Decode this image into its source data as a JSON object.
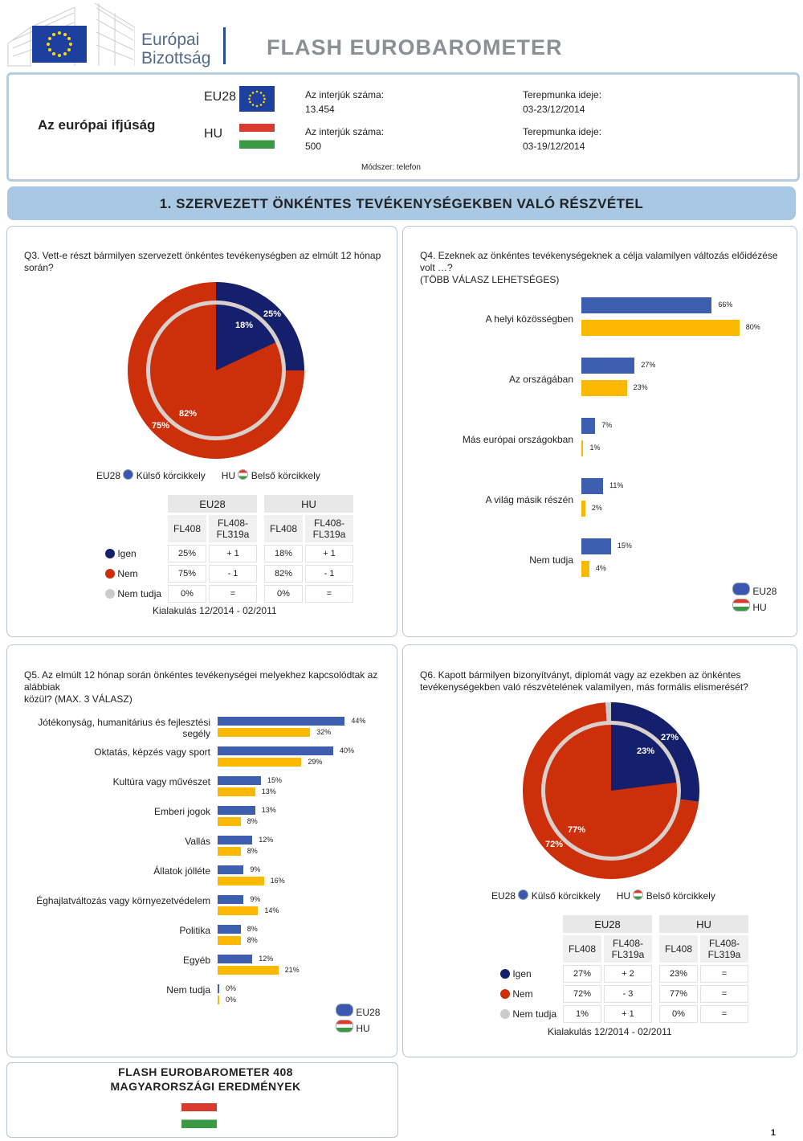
{
  "header": {
    "logo_line1": "Európai",
    "logo_line2": "Bizottság",
    "title": "FLASH EUROBAROMETER"
  },
  "info": {
    "subject": "Az európai ifjúság",
    "eu_code": "EU28",
    "hu_code": "HU",
    "interviews_label": "Az interjúk száma:",
    "eu_interviews": "13.454",
    "hu_interviews": "500",
    "fieldwork_label": "Terepmunka ideje:",
    "eu_fieldwork": "03-23/12/2014",
    "hu_fieldwork": "03-19/12/2014",
    "method": "Módszer: telefon"
  },
  "section_title": "1. SZERVEZETT ÖNKÉNTES TEVÉKENYSÉGEKBEN VALÓ RÉSZVÉTEL",
  "colors": {
    "eu_blue": "#14206b",
    "hu_red": "#cc2f0a",
    "grey": "#cccccc",
    "bar_blue": "#3e5fb0",
    "bar_yellow": "#fbb800"
  },
  "q3": {
    "question": "Q3. Vett-e részt bármilyen szervezett önkéntes tevékenységben az elmúlt 12 hónap során?",
    "legend_eu": "EU28",
    "legend_eu_text": "Külső körcikkely",
    "legend_hu": "HU",
    "legend_hu_text": "Belső körcikkely",
    "pie_labels": {
      "eu_yes": "25%",
      "hu_yes": "18%",
      "eu_no": "75%",
      "hu_no": "82%"
    },
    "table": {
      "group_eu": "EU28",
      "group_hu": "HU",
      "col1": "FL408",
      "col2_line1": "FL408-",
      "col2_line2": "FL319a",
      "rows": [
        {
          "label": "Igen",
          "eu": "25%",
          "eu_d": "+ 1",
          "hu": "18%",
          "hu_d": "+ 1"
        },
        {
          "label": "Nem",
          "eu": "75%",
          "eu_d": "- 1",
          "hu": "82%",
          "hu_d": "- 1"
        },
        {
          "label": "Nem tudja",
          "eu": "0%",
          "eu_d": "=",
          "hu": "0%",
          "hu_d": "="
        }
      ]
    },
    "trend_note": "Kialakulás 12/2014 - 02/2011"
  },
  "q4": {
    "question_line1": "Q4. Ezeknek az  önkéntes tevékenységeknek a  célja valamilyen változás előidézése volt …?",
    "question_line2": "(TÖBB VÁLASZ LEHETSÉGES)",
    "legend_eu": "EU28",
    "legend_hu": "HU"
  },
  "q5": {
    "question_line1": "Q5. Az elmúlt 12 hónap során önkéntes tevékenységei melyekhez kapcsolódtak az alábbiak",
    "question_line2": "közül? (MAX. 3 VÁLASZ)",
    "legend_eu": "EU28",
    "legend_hu": "HU"
  },
  "q6": {
    "question_line1": "Q6. Kapott bármilyen bizonyítványt, diplomát vagy az ezekben az önkéntes",
    "question_line2": "tevékenységekben való részvételének valamilyen, más formális elismerését?",
    "legend_eu": "EU28",
    "legend_eu_text": "Külső körcikkely",
    "legend_hu": "HU",
    "legend_hu_text": "Belső körcikkely",
    "pie_labels": {
      "eu_yes": "27%",
      "hu_yes": "23%",
      "eu_no": "72%",
      "hu_no": "77%"
    },
    "table": {
      "group_eu": "EU28",
      "group_hu": "HU",
      "col1": "FL408",
      "col2_line1": "FL408-",
      "col2_line2": "FL319a",
      "rows": [
        {
          "label": "Igen",
          "eu": "27%",
          "eu_d": "+ 2",
          "hu": "23%",
          "hu_d": "="
        },
        {
          "label": "Nem",
          "eu": "72%",
          "eu_d": "- 3",
          "hu": "77%",
          "hu_d": "="
        },
        {
          "label": "Nem tudja",
          "eu": "1%",
          "eu_d": "+ 1",
          "hu": "0%",
          "hu_d": "="
        }
      ]
    },
    "trend_note": "Kialakulás 12/2014 - 02/2011"
  },
  "chart_data": [
    {
      "type": "pie",
      "title": "Q3. Vett-e részt bármilyen szervezett önkéntes tevékenységben az elmúlt 12 hónap során?",
      "series": [
        {
          "name": "EU28",
          "categories": [
            "Igen",
            "Nem",
            "Nem tudja"
          ],
          "values": [
            25,
            75,
            0
          ]
        },
        {
          "name": "HU",
          "categories": [
            "Igen",
            "Nem",
            "Nem tudja"
          ],
          "values": [
            18,
            82,
            0
          ]
        }
      ]
    },
    {
      "type": "bar",
      "title": "Q4. Ezeknek az  önkéntes tevékenységeknek a  célja valamilyen változás előidézése volt …?",
      "categories": [
        "A helyi közösségben",
        "Az országában",
        "Más európai országokban",
        "A világ másik részén",
        "Nem tudja"
      ],
      "series": [
        {
          "name": "EU28",
          "values": [
            66,
            27,
            7,
            11,
            15
          ]
        },
        {
          "name": "HU",
          "values": [
            80,
            23,
            1,
            2,
            4
          ]
        }
      ]
    },
    {
      "type": "bar",
      "title": "Q5. Az elmúlt 12 hónap során önkéntes tevékenységei melyekhez kapcsolódtak az alábbiak közül? (MAX. 3 VÁLASZ)",
      "categories": [
        "Jótékonyság, humanitárius és fejlesztési segély",
        "Oktatás, képzés vagy sport",
        "Kultúra vagy művészet",
        "Emberi jogok",
        "Vallás",
        "Állatok jólléte",
        "Éghajlatváltozás vagy környezetvédelem",
        "Politika",
        "Egyéb",
        "Nem tudja"
      ],
      "series": [
        {
          "name": "EU28",
          "values": [
            44,
            40,
            15,
            13,
            12,
            9,
            9,
            8,
            12,
            0
          ]
        },
        {
          "name": "HU",
          "values": [
            32,
            29,
            13,
            8,
            8,
            16,
            14,
            8,
            21,
            0
          ]
        }
      ]
    },
    {
      "type": "pie",
      "title": "Q6. Kapott bármilyen bizonyítványt, diplomát vagy az ezekben az önkéntes tevékenységekben való részvételének valamilyen, más formális elismerését?",
      "series": [
        {
          "name": "EU28",
          "categories": [
            "Igen",
            "Nem",
            "Nem tudja"
          ],
          "values": [
            27,
            72,
            1
          ]
        },
        {
          "name": "HU",
          "categories": [
            "Igen",
            "Nem",
            "Nem tudja"
          ],
          "values": [
            23,
            77,
            0
          ]
        }
      ]
    }
  ],
  "footer": {
    "line1": "FLASH EUROBAROMETER 408",
    "line2": "MAGYARORSZÁGI EREDMÉNYEK",
    "page_number": "1"
  }
}
